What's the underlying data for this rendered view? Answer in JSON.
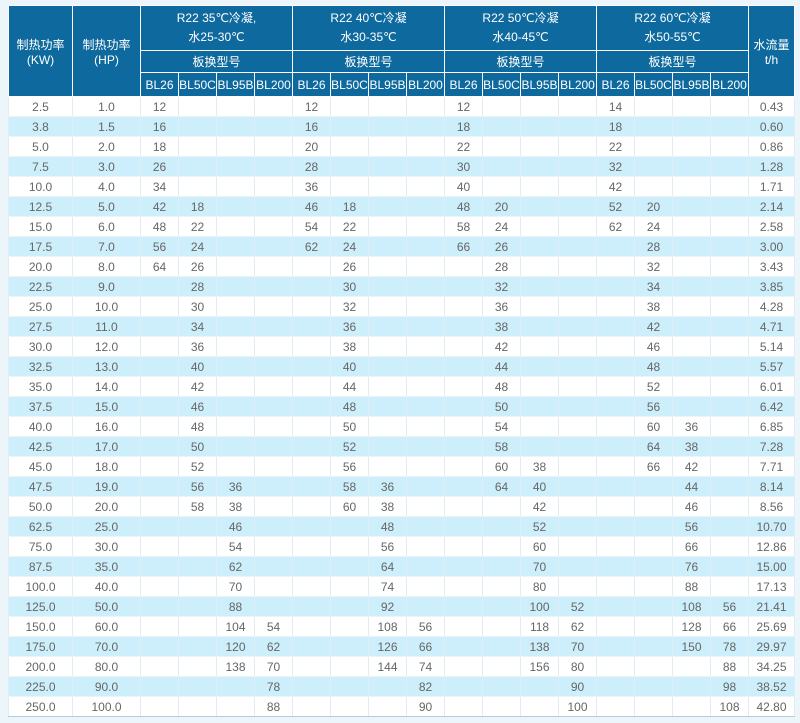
{
  "colors": {
    "header_bg": "#0e6a9e",
    "header_text": "#ffffff",
    "row_bg": "#ffffff",
    "row_alt_bg": "#cdeefb",
    "data_text": "#666666",
    "grid_line": "#e2edf3"
  },
  "table": {
    "col_kw_header": "制热功率(KW)",
    "col_hp_header": "制热功率(HP)",
    "flow_header": "水流量t/h",
    "model_row_label": "板换型号",
    "sections": [
      {
        "line1": "R22 35℃冷凝,",
        "line2": "水25-30℃",
        "models": [
          "BL26",
          "BL50C",
          "BL95B",
          "BL200"
        ]
      },
      {
        "line1": "R22 40℃冷凝",
        "line2": "水30-35℃",
        "models": [
          "BL26",
          "BL50C",
          "BL95B",
          "BL200"
        ]
      },
      {
        "line1": "R22 50℃冷凝",
        "line2": "水40-45℃",
        "models": [
          "BL26",
          "BL50C",
          "BL95B",
          "BL200"
        ]
      },
      {
        "line1": "R22 60℃冷凝",
        "line2": "水50-55℃",
        "models": [
          "BL26",
          "BL50C",
          "BL95B",
          "BL200"
        ]
      }
    ],
    "rows": [
      {
        "kw": "2.5",
        "hp": "1.0",
        "cells": [
          "12",
          "",
          "",
          "",
          "12",
          "",
          "",
          "",
          "12",
          "",
          "",
          "",
          "14",
          "",
          "",
          ""
        ],
        "flow": "0.43"
      },
      {
        "kw": "3.8",
        "hp": "1.5",
        "cells": [
          "16",
          "",
          "",
          "",
          "16",
          "",
          "",
          "",
          "18",
          "",
          "",
          "",
          "18",
          "",
          "",
          ""
        ],
        "flow": "0.60"
      },
      {
        "kw": "5.0",
        "hp": "2.0",
        "cells": [
          "18",
          "",
          "",
          "",
          "20",
          "",
          "",
          "",
          "22",
          "",
          "",
          "",
          "22",
          "",
          "",
          ""
        ],
        "flow": "0.86"
      },
      {
        "kw": "7.5",
        "hp": "3.0",
        "cells": [
          "26",
          "",
          "",
          "",
          "28",
          "",
          "",
          "",
          "30",
          "",
          "",
          "",
          "32",
          "",
          "",
          ""
        ],
        "flow": "1.28"
      },
      {
        "kw": "10.0",
        "hp": "4.0",
        "cells": [
          "34",
          "",
          "",
          "",
          "36",
          "",
          "",
          "",
          "40",
          "",
          "",
          "",
          "42",
          "",
          "",
          ""
        ],
        "flow": "1.71"
      },
      {
        "kw": "12.5",
        "hp": "5.0",
        "cells": [
          "42",
          "18",
          "",
          "",
          "46",
          "18",
          "",
          "",
          "48",
          "20",
          "",
          "",
          "52",
          "20",
          "",
          ""
        ],
        "flow": "2.14"
      },
      {
        "kw": "15.0",
        "hp": "6.0",
        "cells": [
          "48",
          "22",
          "",
          "",
          "54",
          "22",
          "",
          "",
          "58",
          "24",
          "",
          "",
          "62",
          "24",
          "",
          ""
        ],
        "flow": "2.58"
      },
      {
        "kw": "17.5",
        "hp": "7.0",
        "cells": [
          "56",
          "24",
          "",
          "",
          "62",
          "24",
          "",
          "",
          "66",
          "26",
          "",
          "",
          "",
          "28",
          "",
          ""
        ],
        "flow": "3.00"
      },
      {
        "kw": "20.0",
        "hp": "8.0",
        "cells": [
          "64",
          "26",
          "",
          "",
          "",
          "26",
          "",
          "",
          "",
          "28",
          "",
          "",
          "",
          "32",
          "",
          ""
        ],
        "flow": "3.43"
      },
      {
        "kw": "22.5",
        "hp": "9.0",
        "cells": [
          "",
          "28",
          "",
          "",
          "",
          "30",
          "",
          "",
          "",
          "32",
          "",
          "",
          "",
          "34",
          "",
          ""
        ],
        "flow": "3.85"
      },
      {
        "kw": "25.0",
        "hp": "10.0",
        "cells": [
          "",
          "30",
          "",
          "",
          "",
          "32",
          "",
          "",
          "",
          "36",
          "",
          "",
          "",
          "38",
          "",
          ""
        ],
        "flow": "4.28"
      },
      {
        "kw": "27.5",
        "hp": "11.0",
        "cells": [
          "",
          "34",
          "",
          "",
          "",
          "36",
          "",
          "",
          "",
          "38",
          "",
          "",
          "",
          "42",
          "",
          ""
        ],
        "flow": "4.71"
      },
      {
        "kw": "30.0",
        "hp": "12.0",
        "cells": [
          "",
          "36",
          "",
          "",
          "",
          "38",
          "",
          "",
          "",
          "42",
          "",
          "",
          "",
          "46",
          "",
          ""
        ],
        "flow": "5.14"
      },
      {
        "kw": "32.5",
        "hp": "13.0",
        "cells": [
          "",
          "40",
          "",
          "",
          "",
          "40",
          "",
          "",
          "",
          "44",
          "",
          "",
          "",
          "48",
          "",
          ""
        ],
        "flow": "5.57"
      },
      {
        "kw": "35.0",
        "hp": "14.0",
        "cells": [
          "",
          "42",
          "",
          "",
          "",
          "44",
          "",
          "",
          "",
          "48",
          "",
          "",
          "",
          "52",
          "",
          ""
        ],
        "flow": "6.01"
      },
      {
        "kw": "37.5",
        "hp": "15.0",
        "cells": [
          "",
          "46",
          "",
          "",
          "",
          "48",
          "",
          "",
          "",
          "50",
          "",
          "",
          "",
          "56",
          "",
          ""
        ],
        "flow": "6.42"
      },
      {
        "kw": "40.0",
        "hp": "16.0",
        "cells": [
          "",
          "48",
          "",
          "",
          "",
          "50",
          "",
          "",
          "",
          "54",
          "",
          "",
          "",
          "60",
          "36",
          ""
        ],
        "flow": "6.85"
      },
      {
        "kw": "42.5",
        "hp": "17.0",
        "cells": [
          "",
          "50",
          "",
          "",
          "",
          "52",
          "",
          "",
          "",
          "58",
          "",
          "",
          "",
          "64",
          "38",
          ""
        ],
        "flow": "7.28"
      },
      {
        "kw": "45.0",
        "hp": "18.0",
        "cells": [
          "",
          "52",
          "",
          "",
          "",
          "56",
          "",
          "",
          "",
          "60",
          "38",
          "",
          "",
          "66",
          "42",
          ""
        ],
        "flow": "7.71"
      },
      {
        "kw": "47.5",
        "hp": "19.0",
        "cells": [
          "",
          "56",
          "36",
          "",
          "",
          "58",
          "36",
          "",
          "",
          "64",
          "40",
          "",
          "",
          "",
          "44",
          ""
        ],
        "flow": "8.14"
      },
      {
        "kw": "50.0",
        "hp": "20.0",
        "cells": [
          "",
          "58",
          "38",
          "",
          "",
          "60",
          "38",
          "",
          "",
          "",
          "42",
          "",
          "",
          "",
          "46",
          ""
        ],
        "flow": "8.56"
      },
      {
        "kw": "62.5",
        "hp": "25.0",
        "cells": [
          "",
          "",
          "46",
          "",
          "",
          "",
          "48",
          "",
          "",
          "",
          "52",
          "",
          "",
          "",
          "56",
          ""
        ],
        "flow": "10.70"
      },
      {
        "kw": "75.0",
        "hp": "30.0",
        "cells": [
          "",
          "",
          "54",
          "",
          "",
          "",
          "56",
          "",
          "",
          "",
          "60",
          "",
          "",
          "",
          "66",
          ""
        ],
        "flow": "12.86"
      },
      {
        "kw": "87.5",
        "hp": "35.0",
        "cells": [
          "",
          "",
          "62",
          "",
          "",
          "",
          "64",
          "",
          "",
          "",
          "70",
          "",
          "",
          "",
          "76",
          ""
        ],
        "flow": "15.00"
      },
      {
        "kw": "100.0",
        "hp": "40.0",
        "cells": [
          "",
          "",
          "70",
          "",
          "",
          "",
          "74",
          "",
          "",
          "",
          "80",
          "",
          "",
          "",
          "88",
          ""
        ],
        "flow": "17.13"
      },
      {
        "kw": "125.0",
        "hp": "50.0",
        "cells": [
          "",
          "",
          "88",
          "",
          "",
          "",
          "92",
          "",
          "",
          "",
          "100",
          "52",
          "",
          "",
          "108",
          "56"
        ],
        "flow": "21.41"
      },
      {
        "kw": "150.0",
        "hp": "60.0",
        "cells": [
          "",
          "",
          "104",
          "54",
          "",
          "",
          "108",
          "56",
          "",
          "",
          "118",
          "62",
          "",
          "",
          "128",
          "66"
        ],
        "flow": "25.69"
      },
      {
        "kw": "175.0",
        "hp": "70.0",
        "cells": [
          "",
          "",
          "120",
          "62",
          "",
          "",
          "126",
          "66",
          "",
          "",
          "138",
          "70",
          "",
          "",
          "150",
          "78"
        ],
        "flow": "29.97"
      },
      {
        "kw": "200.0",
        "hp": "80.0",
        "cells": [
          "",
          "",
          "138",
          "70",
          "",
          "",
          "144",
          "74",
          "",
          "",
          "156",
          "80",
          "",
          "",
          "",
          "88"
        ],
        "flow": "34.25"
      },
      {
        "kw": "225.0",
        "hp": "90.0",
        "cells": [
          "",
          "",
          "",
          "78",
          "",
          "",
          "",
          "82",
          "",
          "",
          "",
          "90",
          "",
          "",
          "",
          "98"
        ],
        "flow": "38.52"
      },
      {
        "kw": "250.0",
        "hp": "100.0",
        "cells": [
          "",
          "",
          "",
          "88",
          "",
          "",
          "",
          "90",
          "",
          "",
          "",
          "100",
          "",
          "",
          "",
          "108"
        ],
        "flow": "42.80"
      }
    ]
  }
}
